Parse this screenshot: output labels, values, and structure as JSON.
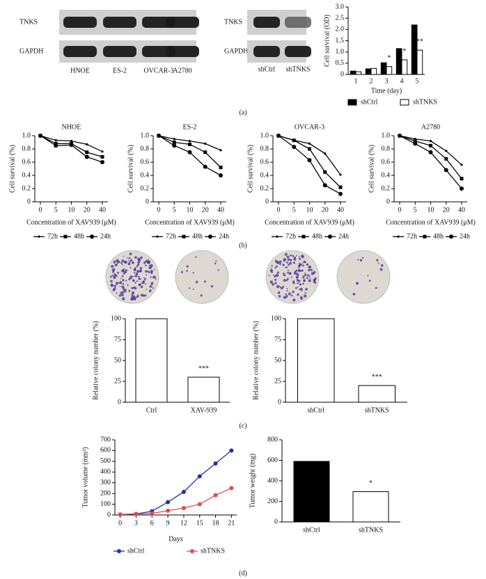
{
  "panel_labels": [
    "(a)",
    "(b)",
    "(c)",
    "(d)"
  ],
  "blots": [
    {
      "rows": [
        "TNKS",
        "GAPDH"
      ],
      "lanes": [
        "HNOE",
        "ES-2",
        "OVCAR-3",
        "A2780"
      ]
    },
    {
      "rows": [
        "TNKS",
        "GAPDH"
      ],
      "lanes": [
        "shCtrl",
        "shTNKS"
      ]
    }
  ],
  "chart_data": [
    {
      "type": "bar",
      "ylabel": "Cell survival (OD)",
      "xlabel": "Time (day)",
      "categories": [
        "1",
        "2",
        "3",
        "4",
        "5"
      ],
      "series": [
        {
          "name": "shCtrl",
          "color": "#000000",
          "values": [
            0.15,
            0.25,
            0.52,
            1.15,
            2.2
          ]
        },
        {
          "name": "shTNKS",
          "color": "#ffffff",
          "values": [
            0.12,
            0.27,
            0.35,
            0.65,
            1.08
          ],
          "significance": [
            null,
            null,
            "*",
            "*",
            "**"
          ]
        }
      ],
      "ylim": [
        0,
        3
      ],
      "yticks": [
        0,
        0.5,
        {
          "value": 1,
          "label": "1.0"
        },
        1.5,
        {
          "value": 2,
          "label": "2.0"
        },
        2.5,
        {
          "value": 3,
          "label": "3.0"
        }
      ],
      "legend": "bottom"
    },
    {
      "type": "line",
      "title": "NHOE",
      "ylabel": "Cell survival (%)",
      "xlabel": "Concentration of XAV939 (μM)",
      "categories": [
        "0",
        "5",
        "10",
        "20",
        "40"
      ],
      "series": [
        {
          "name": "72h",
          "color": "#000000",
          "marker": "dot",
          "values": [
            1,
            0.93,
            0.92,
            0.87,
            0.76
          ]
        },
        {
          "name": "48h",
          "color": "#000000",
          "marker": "square",
          "values": [
            1,
            0.88,
            0.88,
            0.75,
            0.68
          ]
        },
        {
          "name": "24h",
          "color": "#000000",
          "marker": "circle",
          "values": [
            1,
            0.85,
            0.86,
            0.68,
            0.6
          ]
        }
      ],
      "ylim": [
        0,
        1
      ],
      "yticks": [
        0,
        0.2,
        0.4,
        0.6,
        0.8,
        {
          "value": 1,
          "label": "1.0"
        }
      ],
      "legend": "bottom"
    },
    {
      "type": "line",
      "title": "ES-2",
      "ylabel": "Cell survival (%)",
      "xlabel": "Concentration of XAV939 (μM)",
      "categories": [
        "0",
        "5",
        "10",
        "20",
        "40"
      ],
      "series": [
        {
          "name": "72h",
          "color": "#000000",
          "marker": "dot",
          "values": [
            1,
            0.95,
            0.92,
            0.88,
            0.78
          ]
        },
        {
          "name": "48h",
          "color": "#000000",
          "marker": "square",
          "values": [
            1,
            0.9,
            0.87,
            0.75,
            0.52
          ]
        },
        {
          "name": "24h",
          "color": "#000000",
          "marker": "circle",
          "values": [
            1,
            0.85,
            0.75,
            0.53,
            0.4
          ]
        }
      ],
      "ylim": [
        0,
        1
      ],
      "yticks": [
        0,
        0.2,
        0.4,
        0.6,
        0.8,
        {
          "value": 1,
          "label": "1.0"
        }
      ],
      "legend": "bottom"
    },
    {
      "type": "line",
      "title": "OVCAR-3",
      "ylabel": "Cell survival (%)",
      "xlabel": "Concentration of XAV939 (μM)",
      "categories": [
        "0",
        "5",
        "10",
        "20",
        "40"
      ],
      "series": [
        {
          "name": "72h",
          "color": "#000000",
          "marker": "dot",
          "values": [
            1,
            0.93,
            0.88,
            0.73,
            0.41
          ]
        },
        {
          "name": "48h",
          "color": "#000000",
          "marker": "square",
          "values": [
            1,
            0.93,
            0.8,
            0.45,
            0.22
          ]
        },
        {
          "name": "24h",
          "color": "#000000",
          "marker": "circle",
          "values": [
            1,
            0.83,
            0.63,
            0.25,
            0.12
          ]
        }
      ],
      "ylim": [
        0,
        1
      ],
      "yticks": [
        0,
        0.2,
        0.4,
        0.6,
        0.8,
        {
          "value": 1,
          "label": "1.0"
        }
      ],
      "legend": "bottom"
    },
    {
      "type": "line",
      "title": "A2780",
      "ylabel": "Cell survival (%)",
      "xlabel": "Concentration of XAV939 (μM)",
      "categories": [
        "0",
        "5",
        "10",
        "20",
        "40"
      ],
      "series": [
        {
          "name": "72h",
          "color": "#000000",
          "marker": "dot",
          "values": [
            1,
            0.95,
            0.92,
            0.77,
            0.56
          ]
        },
        {
          "name": "48h",
          "color": "#000000",
          "marker": "square",
          "values": [
            1,
            0.92,
            0.85,
            0.65,
            0.35
          ]
        },
        {
          "name": "24h",
          "color": "#000000",
          "marker": "circle",
          "values": [
            1,
            0.88,
            0.75,
            0.48,
            0.2
          ]
        }
      ],
      "ylim": [
        0,
        1
      ],
      "yticks": [
        0,
        0.2,
        0.4,
        0.6,
        0.8,
        {
          "value": 1,
          "label": "1.0"
        }
      ],
      "legend": "bottom"
    },
    {
      "type": "bar",
      "ylabel": "Relative colony number (%)",
      "categories": [
        "Ctrl",
        "XAV-939"
      ],
      "values": [
        100,
        30
      ],
      "color": "#ffffff",
      "significance": [
        null,
        "***"
      ],
      "ylim": [
        0,
        100
      ],
      "yticks": [
        0,
        25,
        50,
        75,
        100
      ]
    },
    {
      "type": "bar",
      "ylabel": "Relative colony number (%)",
      "categories": [
        "shCtrl",
        "shTNKS"
      ],
      "values": [
        100,
        20
      ],
      "color": "#ffffff",
      "significance": [
        null,
        "***"
      ],
      "ylim": [
        0,
        100
      ],
      "yticks": [
        0,
        25,
        50,
        75,
        100
      ]
    },
    {
      "type": "line",
      "ylabel": "Tumor volume (mm³)",
      "xlabel": "Days",
      "x": [
        0,
        3,
        6,
        9,
        12,
        15,
        18,
        21
      ],
      "series": [
        {
          "name": "shCtrl",
          "color": "#1f2fb5",
          "marker": "circle",
          "values": [
            5,
            10,
            35,
            120,
            215,
            360,
            480,
            600
          ]
        },
        {
          "name": "shTNKS",
          "color": "#e8474c",
          "marker": "circle",
          "values": [
            5,
            8,
            15,
            40,
            65,
            100,
            185,
            250
          ]
        }
      ],
      "xlim": [
        -1,
        22
      ],
      "xticks": [
        0,
        3,
        6,
        9,
        12,
        15,
        18,
        21
      ],
      "ylim": [
        0,
        700
      ],
      "yticks": [
        0,
        100,
        200,
        300,
        400,
        500,
        600,
        700
      ],
      "legend": "bottom"
    },
    {
      "type": "bar",
      "ylabel": "Tumor weight (mg)",
      "categories": [
        "shCtrl",
        "shTNKS"
      ],
      "values": [
        590,
        295
      ],
      "colors": [
        "#000000",
        "#ffffff"
      ],
      "significance": [
        null,
        "*"
      ],
      "ylim": [
        0,
        800
      ],
      "yticks": [
        0,
        200,
        400,
        600,
        800
      ]
    }
  ]
}
